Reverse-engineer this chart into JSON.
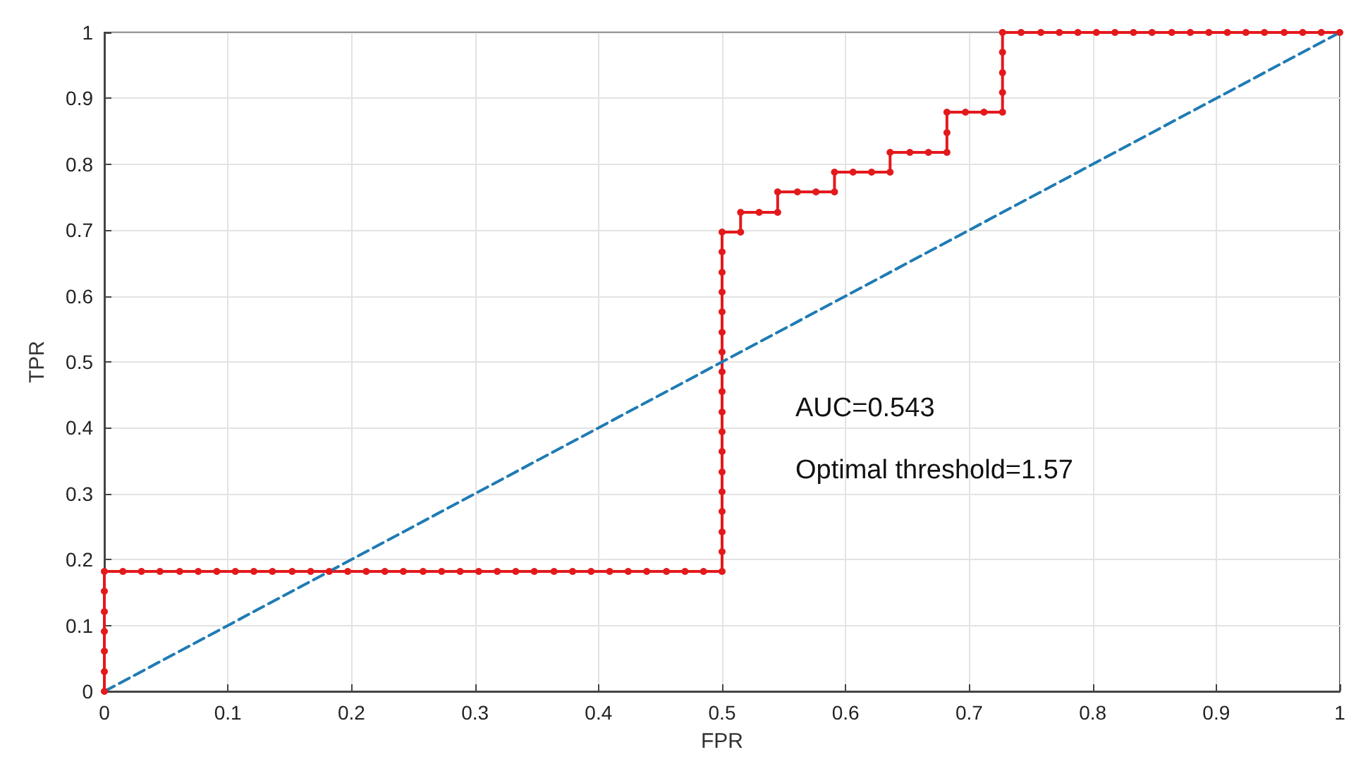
{
  "chart_data": {
    "type": "line",
    "xlabel": "FPR",
    "ylabel": "TPR",
    "xlim": [
      0,
      1
    ],
    "ylim": [
      0,
      1
    ],
    "xticks": [
      0,
      0.1,
      0.2,
      0.3,
      0.4,
      0.5,
      0.6,
      0.7,
      0.8,
      0.9,
      1
    ],
    "yticks": [
      0,
      0.1,
      0.2,
      0.3,
      0.4,
      0.5,
      0.6,
      0.7,
      0.8,
      0.9,
      1
    ],
    "grid": true,
    "annotations": [
      "AUC=0.543",
      "Optimal threshold=1.57"
    ],
    "series": [
      {
        "color": "#e3191c",
        "marker": "circle",
        "line_style": "solid",
        "x": [
          0,
          0,
          0,
          0,
          0,
          0,
          0,
          0.015,
          0.03,
          0.045,
          0.061,
          0.076,
          0.091,
          0.106,
          0.121,
          0.136,
          0.152,
          0.167,
          0.182,
          0.197,
          0.212,
          0.227,
          0.242,
          0.258,
          0.273,
          0.288,
          0.303,
          0.318,
          0.333,
          0.348,
          0.364,
          0.379,
          0.394,
          0.409,
          0.424,
          0.439,
          0.455,
          0.47,
          0.485,
          0.5,
          0.5,
          0.5,
          0.5,
          0.5,
          0.5,
          0.5,
          0.5,
          0.5,
          0.5,
          0.5,
          0.5,
          0.5,
          0.5,
          0.5,
          0.5,
          0.5,
          0.5,
          0.515,
          0.515,
          0.53,
          0.545,
          0.545,
          0.561,
          0.576,
          0.591,
          0.591,
          0.606,
          0.621,
          0.636,
          0.636,
          0.652,
          0.667,
          0.682,
          0.682,
          0.682,
          0.697,
          0.712,
          0.727,
          0.727,
          0.727,
          0.727,
          0.727,
          0.742,
          0.758,
          0.773,
          0.788,
          0.803,
          0.818,
          0.833,
          0.848,
          0.864,
          0.879,
          0.894,
          0.909,
          0.924,
          0.939,
          0.955,
          0.97,
          0.985,
          1
        ],
        "values": [
          0,
          0.03,
          0.061,
          0.091,
          0.121,
          0.152,
          0.182,
          0.182,
          0.182,
          0.182,
          0.182,
          0.182,
          0.182,
          0.182,
          0.182,
          0.182,
          0.182,
          0.182,
          0.182,
          0.182,
          0.182,
          0.182,
          0.182,
          0.182,
          0.182,
          0.182,
          0.182,
          0.182,
          0.182,
          0.182,
          0.182,
          0.182,
          0.182,
          0.182,
          0.182,
          0.182,
          0.182,
          0.182,
          0.182,
          0.182,
          0.212,
          0.242,
          0.273,
          0.303,
          0.333,
          0.364,
          0.394,
          0.424,
          0.455,
          0.485,
          0.515,
          0.545,
          0.576,
          0.606,
          0.636,
          0.667,
          0.697,
          0.697,
          0.727,
          0.727,
          0.727,
          0.758,
          0.758,
          0.758,
          0.758,
          0.788,
          0.788,
          0.788,
          0.788,
          0.818,
          0.818,
          0.818,
          0.818,
          0.848,
          0.879,
          0.879,
          0.879,
          0.879,
          0.909,
          0.939,
          0.97,
          1,
          1,
          1,
          1,
          1,
          1,
          1,
          1,
          1,
          1,
          1,
          1,
          1,
          1,
          1,
          1,
          1,
          1,
          1
        ]
      },
      {
        "color": "#1f7bb4",
        "marker": "none",
        "line_style": "dashed",
        "x": [
          0,
          1
        ],
        "values": [
          0,
          1
        ]
      }
    ]
  }
}
